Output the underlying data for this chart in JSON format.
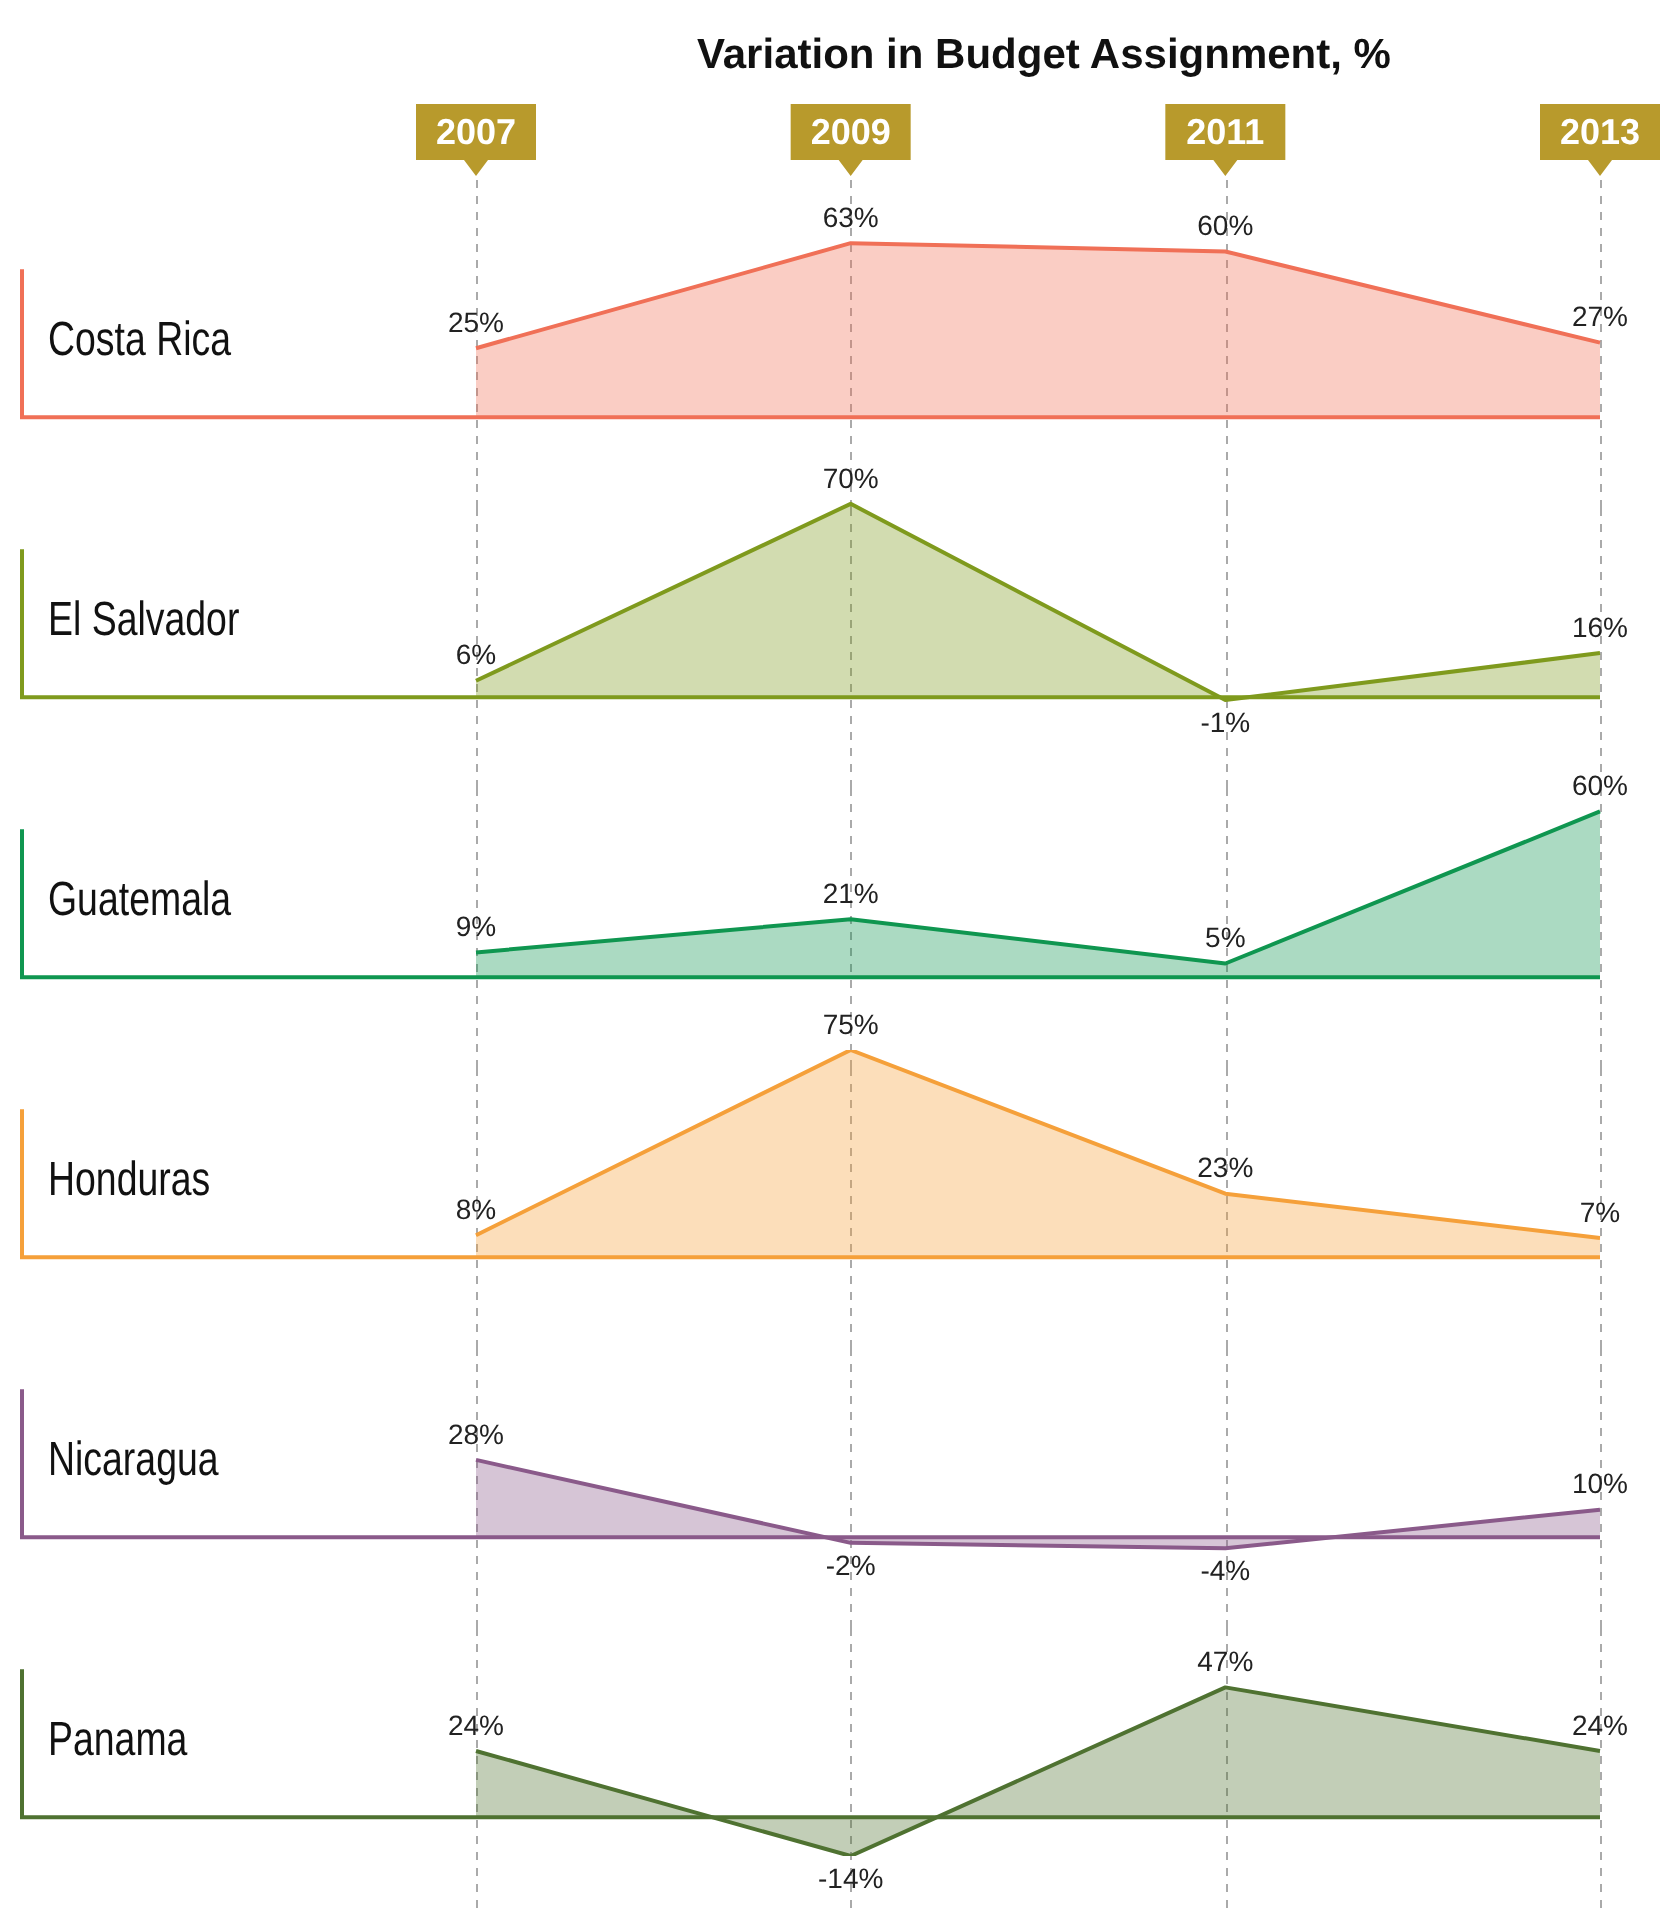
{
  "chart_data": [
    {
      "type": "area",
      "title": "Variation in Budget Assignment, %",
      "categories": [
        "2007",
        "2009",
        "2011",
        "2013"
      ],
      "grid": "x",
      "tick_labels": "x",
      "series": [
        {
          "name": "Costa Rica",
          "color": "#f07057",
          "values": [
            25,
            63,
            60,
            27
          ],
          "value_labels": [
            "25%",
            "63%",
            "60%",
            "27%"
          ]
        }
      ]
    },
    {
      "type": "area",
      "categories": [
        "2007",
        "2009",
        "2011",
        "2013"
      ],
      "grid": "x",
      "tick_labels": false,
      "series": [
        {
          "name": "El Salvador",
          "color": "#7f9a1d",
          "values": [
            6,
            70,
            -1,
            16
          ],
          "value_labels": [
            "6%",
            "70%",
            "-1%",
            "16%"
          ]
        }
      ]
    },
    {
      "type": "area",
      "categories": [
        "2007",
        "2009",
        "2011",
        "2013"
      ],
      "grid": "x",
      "tick_labels": false,
      "series": [
        {
          "name": "Guatemala",
          "color": "#0f9650",
          "values": [
            9,
            21,
            5,
            60
          ],
          "value_labels": [
            "9%",
            "21%",
            "5%",
            "60%"
          ]
        }
      ]
    },
    {
      "type": "area",
      "categories": [
        "2007",
        "2009",
        "2011",
        "2013"
      ],
      "grid": "x",
      "tick_labels": false,
      "series": [
        {
          "name": "Honduras",
          "color": "#f5a03a",
          "values": [
            8,
            75,
            23,
            7
          ],
          "value_labels": [
            "8%",
            "75%",
            "23%",
            "7%"
          ]
        }
      ]
    },
    {
      "type": "area",
      "categories": [
        "2007",
        "2009",
        "2011",
        "2013"
      ],
      "grid": "x",
      "tick_labels": false,
      "series": [
        {
          "name": "Nicaragua",
          "color": "#8a5a8a",
          "values": [
            28,
            -2,
            -4,
            10
          ],
          "value_labels": [
            "28%",
            "-2%",
            "-4%",
            "10%"
          ]
        }
      ]
    },
    {
      "type": "area",
      "categories": [
        "2007",
        "2009",
        "2011",
        "2013"
      ],
      "grid": "x",
      "tick_labels": false,
      "series": [
        {
          "name": "Panama",
          "color": "#4f7231",
          "values": [
            24,
            -14,
            47,
            24
          ],
          "value_labels": [
            "24%",
            "-14%",
            "47%",
            "24%"
          ]
        }
      ]
    }
  ]
}
